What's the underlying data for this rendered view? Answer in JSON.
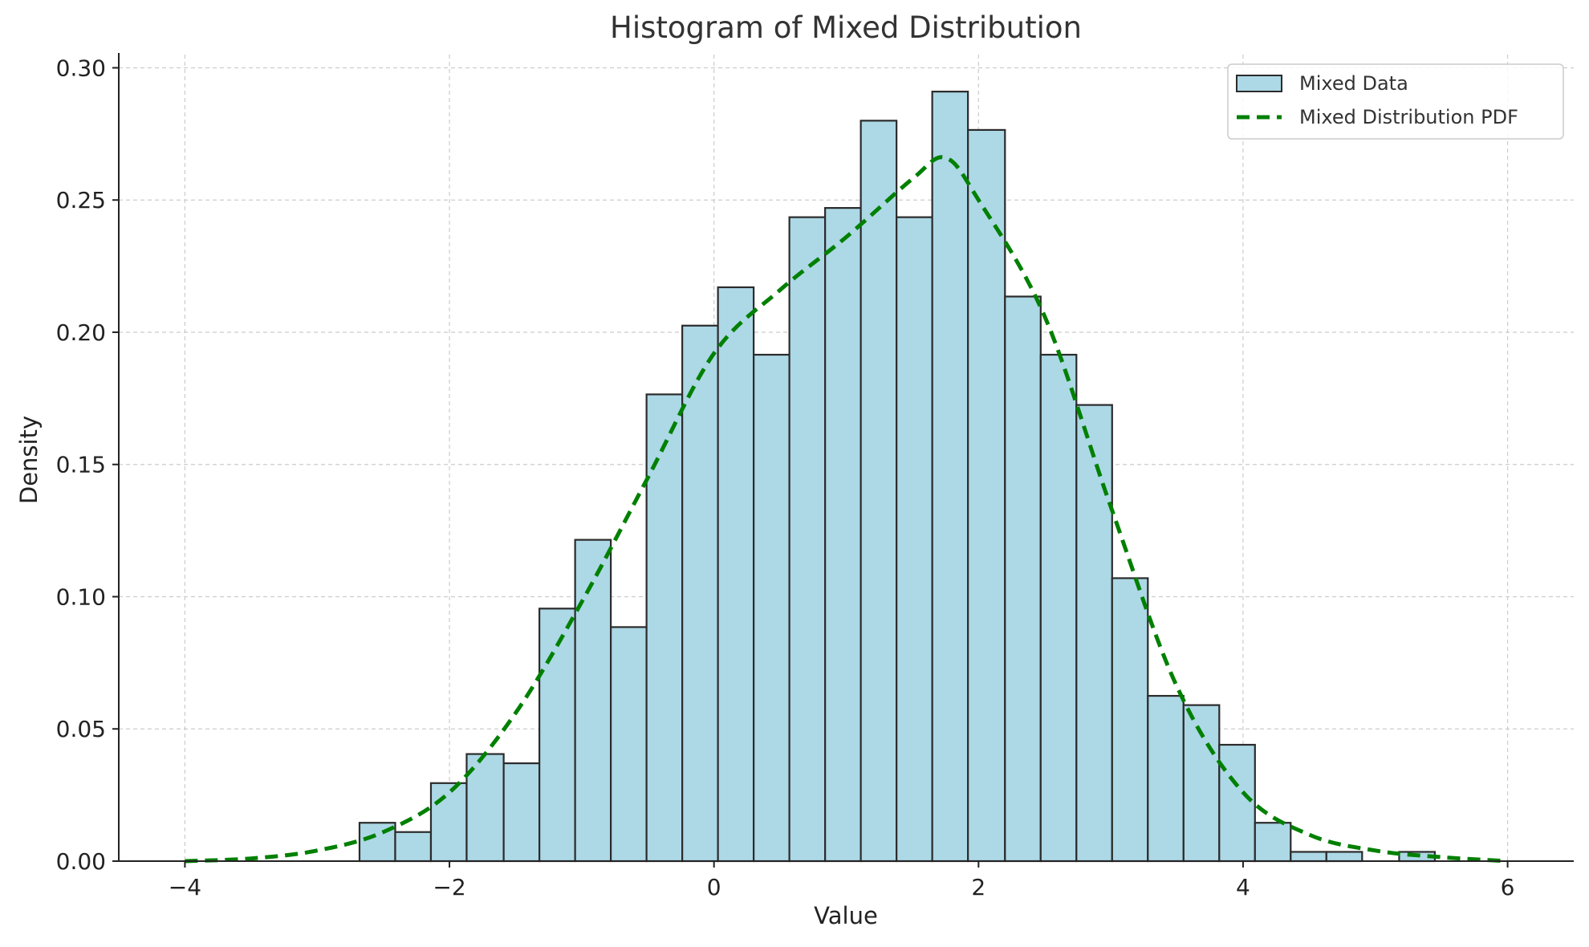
{
  "chart_data": {
    "type": "bar",
    "title": "Histogram of Mixed Distribution",
    "xlabel": "Value",
    "ylabel": "Density",
    "xlim": [
      -4.5,
      6.5
    ],
    "ylim": [
      0,
      0.305
    ],
    "xticks": [
      -4,
      -2,
      0,
      2,
      4,
      6
    ],
    "xtick_labels": [
      "−4",
      "−2",
      "0",
      "2",
      "4",
      "6"
    ],
    "yticks": [
      0.0,
      0.05,
      0.1,
      0.15,
      0.2,
      0.25,
      0.3
    ],
    "ytick_labels": [
      "0.00",
      "0.05",
      "0.10",
      "0.15",
      "0.20",
      "0.25",
      "0.30"
    ],
    "grid": true,
    "legend_position": "top-right",
    "bin_edges": [
      -2.68,
      -2.41,
      -2.14,
      -1.87,
      -1.59,
      -1.32,
      -1.05,
      -0.78,
      -0.51,
      -0.24,
      0.03,
      0.3,
      0.57,
      0.84,
      1.11,
      1.38,
      1.65,
      1.92,
      2.2,
      2.47,
      2.74,
      3.01,
      3.28,
      3.55,
      3.82,
      4.09,
      4.36,
      4.63,
      4.9,
      5.18,
      5.45
    ],
    "series": [
      {
        "name": "Mixed Data",
        "kind": "histogram",
        "color": "#add8e6",
        "edge_color": "#2b2b2b",
        "values": [
          0.0145,
          0.011,
          0.0295,
          0.0405,
          0.037,
          0.0955,
          0.1215,
          0.0885,
          0.1765,
          0.2025,
          0.217,
          0.1915,
          0.2435,
          0.247,
          0.28,
          0.2435,
          0.291,
          0.2765,
          0.2135,
          0.1915,
          0.1725,
          0.107,
          0.0625,
          0.059,
          0.044,
          0.0145,
          0.0035,
          0.0035,
          0.0,
          0.0035
        ]
      },
      {
        "name": "Mixed Distribution PDF",
        "kind": "line",
        "color": "#008000",
        "line_style": "dashed",
        "x": [
          -4.0,
          -3.5,
          -3.0,
          -2.5,
          -2.0,
          -1.5,
          -1.0,
          -0.5,
          0.0,
          0.5,
          1.0,
          1.5,
          1.75,
          2.0,
          2.5,
          3.0,
          3.5,
          4.0,
          4.5,
          5.0,
          5.5,
          6.0
        ],
        "values": [
          0.0,
          0.001,
          0.004,
          0.011,
          0.026,
          0.056,
          0.098,
          0.145,
          0.192,
          0.216,
          0.236,
          0.258,
          0.266,
          0.25,
          0.206,
          0.134,
          0.066,
          0.026,
          0.01,
          0.004,
          0.0015,
          0.0
        ]
      }
    ]
  }
}
